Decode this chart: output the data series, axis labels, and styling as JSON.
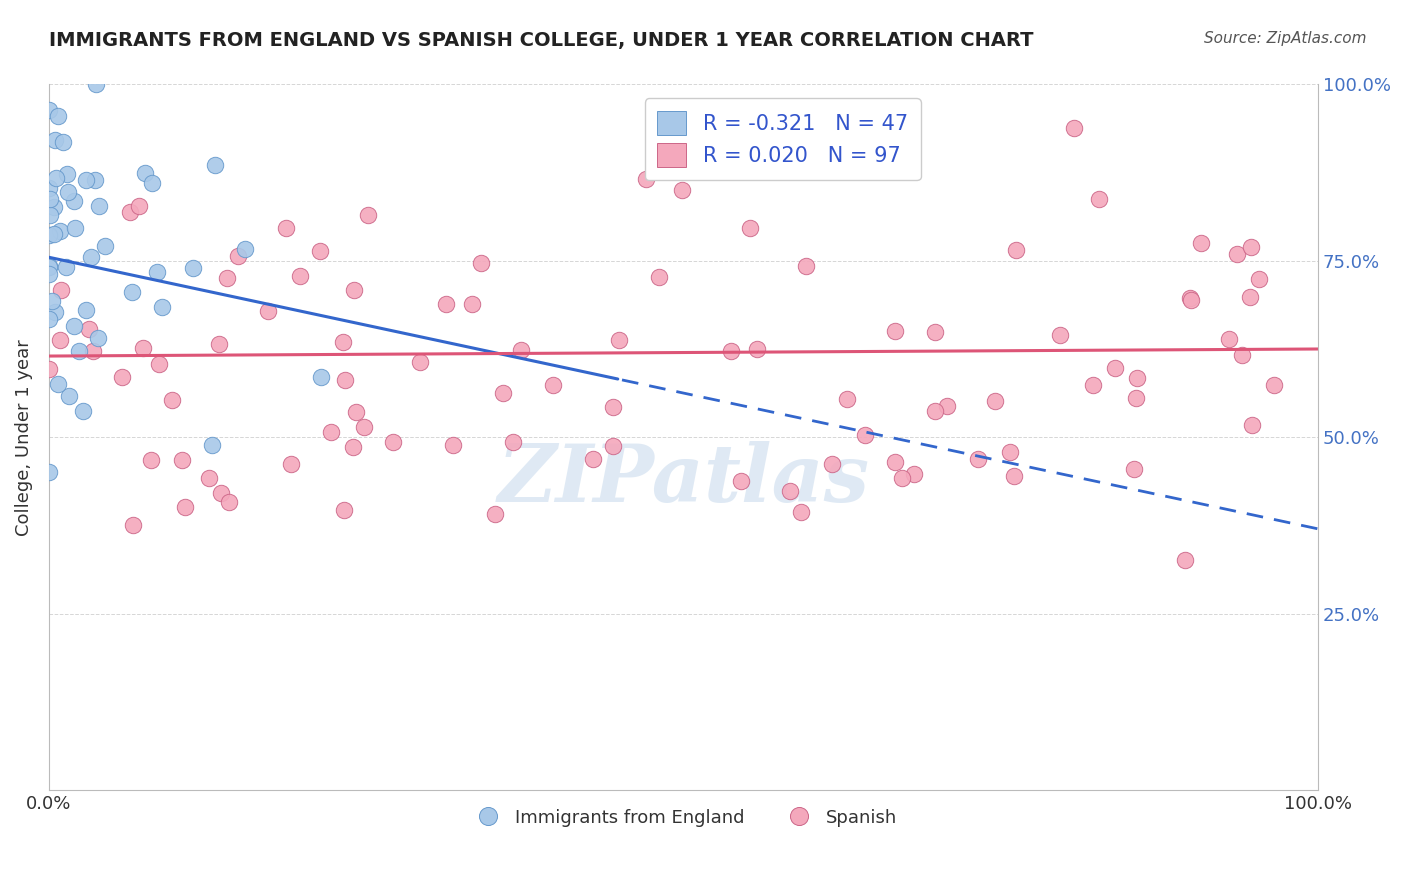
{
  "title": "IMMIGRANTS FROM ENGLAND VS SPANISH COLLEGE, UNDER 1 YEAR CORRELATION CHART",
  "source": "Source: ZipAtlas.com",
  "ylabel": "College, Under 1 year",
  "xlim": [
    0.0,
    1.0
  ],
  "ylim": [
    0.0,
    1.0
  ],
  "series1_color": "#a8c8e8",
  "series1_edge": "#6699cc",
  "series2_color": "#f4a8bc",
  "series2_edge": "#cc6688",
  "trend1_color": "#3366cc",
  "trend2_color": "#dd5577",
  "background_color": "#ffffff",
  "grid_color": "#cccccc",
  "R1": -0.321,
  "N1": 47,
  "R2": 0.02,
  "N2": 97,
  "trend1_x0": 0.0,
  "trend1_y0": 0.755,
  "trend1_x1": 1.0,
  "trend1_y1": 0.37,
  "trend1_solid_end": 0.45,
  "trend2_x0": 0.0,
  "trend2_y0": 0.615,
  "trend2_x1": 1.0,
  "trend2_y1": 0.625,
  "watermark_color": "#c5d8ec",
  "watermark_alpha": 0.55,
  "title_color": "#222222",
  "source_color": "#555555",
  "legend_R_color": "#dd3355",
  "legend_N_color": "#3355cc",
  "right_tick_color": "#4472c4",
  "seed1": 7,
  "seed2": 13
}
